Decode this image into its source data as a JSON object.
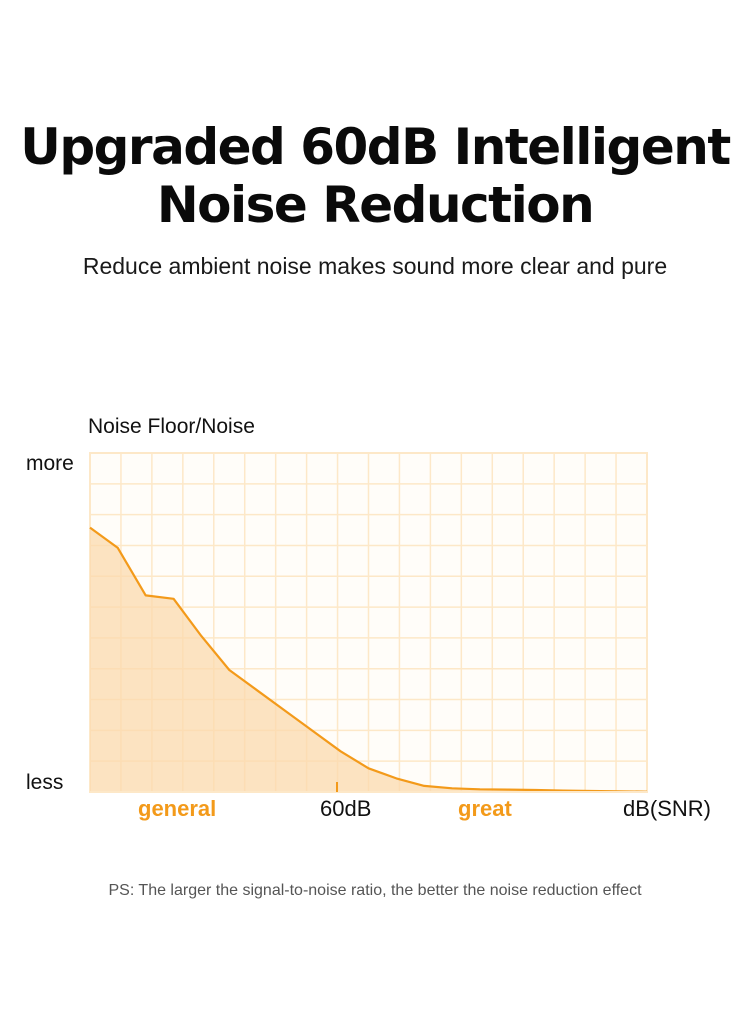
{
  "heading": {
    "line1": "Upgraded 60dB Intelligent",
    "line2": "Noise Reduction",
    "subtitle": "Reduce ambient noise makes sound more clear and pure"
  },
  "chart_data": {
    "type": "area",
    "ylabel": "Noise Floor/Noise",
    "y_ticks": {
      "top": "more",
      "bottom": "less"
    },
    "x_categories": [
      "general",
      "60dB",
      "great",
      "dB(SNR)"
    ],
    "x": [
      0,
      5,
      10,
      15,
      20,
      25,
      30,
      35,
      40,
      45,
      50,
      55,
      60,
      65,
      70,
      75,
      80,
      85,
      90,
      95,
      100
    ],
    "y": [
      0.78,
      0.72,
      0.58,
      0.57,
      0.46,
      0.36,
      0.3,
      0.24,
      0.18,
      0.12,
      0.07,
      0.04,
      0.018,
      0.011,
      0.008,
      0.007,
      0.006,
      0.004,
      0.003,
      0.002,
      0.001
    ],
    "xlim": [
      0,
      100
    ],
    "ylim": [
      0,
      1
    ],
    "grid": true,
    "colors": {
      "line": "#f39a1a",
      "fill": "#fbd9ae",
      "grid": "#fde8c8",
      "accent": "#f39a1a"
    }
  },
  "note": "PS: The larger the signal-to-noise ratio, the better the noise reduction effect"
}
